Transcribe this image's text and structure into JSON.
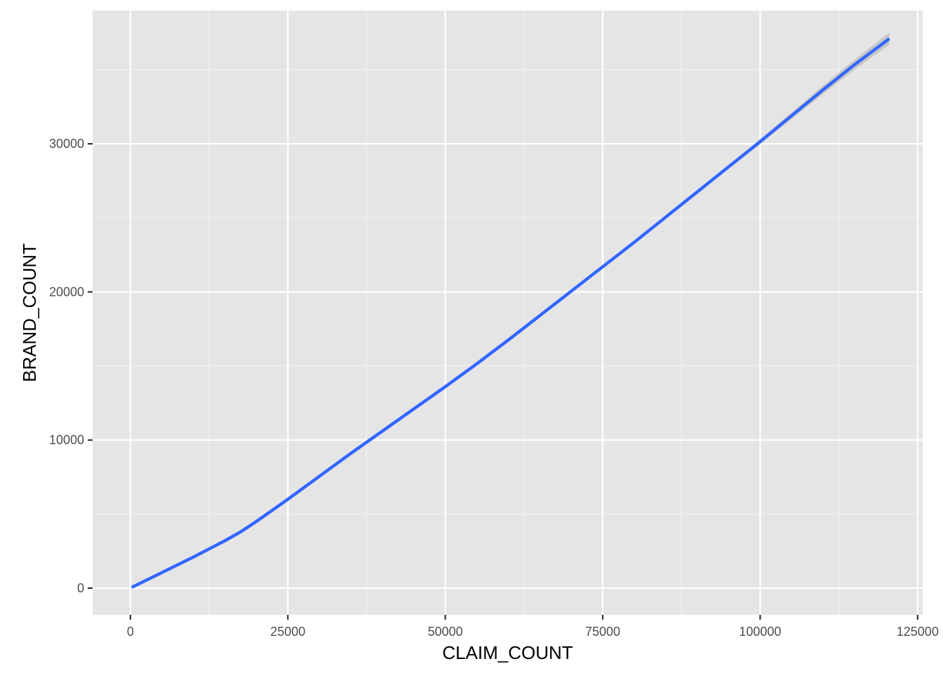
{
  "chart_data": {
    "type": "line",
    "title": "",
    "xlabel": "CLAIM_COUNT",
    "ylabel": "BRAND_COUNT",
    "xlim": [
      -6000,
      125800
    ],
    "ylim": [
      -1800,
      39000
    ],
    "x_ticks": [
      0,
      25000,
      50000,
      75000,
      100000,
      125000
    ],
    "x_tick_labels": [
      "0",
      "25000",
      "50000",
      "75000",
      "100000",
      "125000"
    ],
    "y_ticks": [
      0,
      10000,
      20000,
      30000
    ],
    "y_tick_labels": [
      "0",
      "10000",
      "20000",
      "30000"
    ],
    "grid": true,
    "legend": "none",
    "colors": {
      "panel_background": "#e5e5e5",
      "grid_major": "#ffffff",
      "grid_minor": "#f2f2f2",
      "line": "#3366ff",
      "confidence_band": "#b3b3b3"
    },
    "series": [
      {
        "values": [
          {
            "x": 200,
            "y": 50
          },
          {
            "x": 5000,
            "y": 1050
          },
          {
            "x": 10000,
            "y": 2100
          },
          {
            "x": 15000,
            "y": 3200
          },
          {
            "x": 17500,
            "y": 3800
          },
          {
            "x": 20000,
            "y": 4500
          },
          {
            "x": 25000,
            "y": 6000
          },
          {
            "x": 30000,
            "y": 7550
          },
          {
            "x": 35000,
            "y": 9100
          },
          {
            "x": 40000,
            "y": 10600
          },
          {
            "x": 45000,
            "y": 12100
          },
          {
            "x": 50000,
            "y": 13600
          },
          {
            "x": 55000,
            "y": 15150
          },
          {
            "x": 60000,
            "y": 16750
          },
          {
            "x": 65000,
            "y": 18400
          },
          {
            "x": 70000,
            "y": 20050
          },
          {
            "x": 75000,
            "y": 21700
          },
          {
            "x": 80000,
            "y": 23350
          },
          {
            "x": 85000,
            "y": 25050
          },
          {
            "x": 90000,
            "y": 26750
          },
          {
            "x": 95000,
            "y": 28450
          },
          {
            "x": 100000,
            "y": 30150
          },
          {
            "x": 105000,
            "y": 31900
          },
          {
            "x": 110000,
            "y": 33650
          },
          {
            "x": 115000,
            "y": 35350
          },
          {
            "x": 120500,
            "y": 37100
          }
        ],
        "band_halfwidth": [
          40,
          30,
          30,
          30,
          30,
          30,
          30,
          30,
          30,
          30,
          30,
          30,
          30,
          30,
          30,
          30,
          40,
          50,
          70,
          100,
          130,
          170,
          220,
          280,
          340,
          420
        ]
      }
    ]
  }
}
